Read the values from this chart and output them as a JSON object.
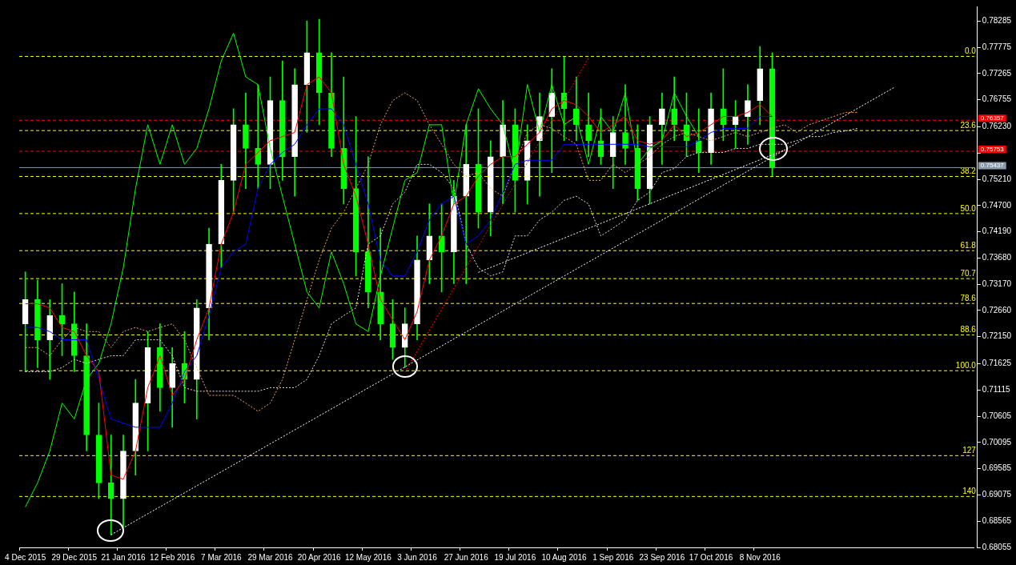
{
  "chart_data": {
    "type": "candlestick",
    "color": "#00ff00",
    "colors": [
      "#ffffff",
      "#00ff00",
      "#ffffff",
      "#00ff00",
      "#00ff00",
      "#00ff00",
      "#00ff00",
      "#00ff00",
      "#ffffff",
      "#ffffff",
      "#ffffff",
      "#00ff00",
      "#ffffff",
      "#00ff00",
      "#ffffff",
      "#ffffff",
      "#ffffff",
      "#ffffff",
      "#00ff00",
      "#00ff00",
      "#ffffff",
      "#00ff00",
      "#ffffff",
      "#ffffff",
      "#00ff00",
      "#00ff00",
      "#00ff00",
      "#00ff00",
      "#00ff00",
      "#00ff00",
      "#00ff00",
      "#ffffff",
      "#ffffff",
      "#ffffff",
      "#00ff00",
      "#ffffff",
      "#ffffff",
      "#00ff00",
      "#ffffff",
      "#ffffff",
      "#00ff00",
      "#ffffff",
      "#ffffff",
      "#ffffff",
      "#00ff00",
      "#00ff00",
      "#00ff00",
      "#00ff00",
      "#ffffff",
      "#00ff00",
      "#00ff00",
      "#ffffff",
      "#ffffff",
      "#00ff00",
      "#00ff00",
      "#00ff00",
      "#ffffff",
      "#00ff00",
      "#ffffff",
      "#ffffff",
      "#ffffff",
      "#00ff00",
      null,
      null,
      null,
      null,
      null,
      null,
      null,
      null,
      null,
      null,
      null,
      null,
      null,
      null,
      null,
      null
    ],
    "categories": [
      "4 Dec 2015",
      null,
      null,
      null,
      "29 Dec 2015",
      null,
      null,
      null,
      "21 Jan 2016",
      null,
      null,
      null,
      "12 Feb 2016",
      null,
      null,
      null,
      "7 Mar 2016",
      null,
      null,
      null,
      "29 Mar 2016",
      null,
      null,
      null,
      "20 Apr 2016",
      null,
      null,
      null,
      "12 May 2016",
      null,
      null,
      null,
      "3 Jun 2016",
      null,
      null,
      null,
      "27 Jun 2016",
      null,
      null,
      null,
      "19 Jul 2016",
      null,
      null,
      null,
      "10 Aug 2016",
      null,
      null,
      null,
      "1 Sep 2016",
      null,
      null,
      null,
      "23 Sep 2016",
      null,
      null,
      null,
      "17 Oct 2016",
      null,
      null,
      null,
      "8 Nov 2016",
      null,
      null,
      null,
      null,
      null,
      null,
      null,
      null,
      null,
      null,
      null,
      null,
      null,
      null,
      null,
      null,
      null
    ],
    "ohlc": [
      [
        0.724,
        0.7341,
        0.7147,
        0.7287
      ],
      [
        0.7287,
        0.7325,
        0.7155,
        0.7209
      ],
      [
        0.7209,
        0.7287,
        0.7132,
        0.7256
      ],
      [
        0.7256,
        0.7318,
        0.7178,
        0.724
      ],
      [
        0.724,
        0.7302,
        0.7147,
        0.7178
      ],
      [
        0.7178,
        0.724,
        0.6993,
        0.7024
      ],
      [
        0.7024,
        0.7086,
        0.69,
        0.6931
      ],
      [
        0.6931,
        0.7024,
        0.683,
        0.69
      ],
      [
        0.69,
        0.7024,
        0.6846,
        0.6993
      ],
      [
        0.6993,
        0.7132,
        0.6946,
        0.7086
      ],
      [
        0.7086,
        0.7225,
        0.6993,
        0.7194
      ],
      [
        0.7194,
        0.724,
        0.707,
        0.7116
      ],
      [
        0.7116,
        0.7194,
        0.7039,
        0.7163
      ],
      [
        0.7163,
        0.7225,
        0.7086,
        0.7132
      ],
      [
        0.7132,
        0.7287,
        0.7055,
        0.7271
      ],
      [
        0.7271,
        0.7426,
        0.7209,
        0.7395
      ],
      [
        0.7395,
        0.755,
        0.7349,
        0.7519
      ],
      [
        0.7519,
        0.7658,
        0.7457,
        0.7627
      ],
      [
        0.7627,
        0.7689,
        0.7503,
        0.7581
      ],
      [
        0.7581,
        0.7705,
        0.7503,
        0.755
      ],
      [
        0.755,
        0.772,
        0.7503,
        0.7674
      ],
      [
        0.7674,
        0.7751,
        0.7519,
        0.7565
      ],
      [
        0.7565,
        0.7736,
        0.7488,
        0.7705
      ],
      [
        0.7705,
        0.7829,
        0.7612,
        0.7767
      ],
      [
        0.7767,
        0.7832,
        0.7627,
        0.7689
      ],
      [
        0.7689,
        0.7767,
        0.7565,
        0.7581
      ],
      [
        0.7581,
        0.772,
        0.7473,
        0.7503
      ],
      [
        0.7503,
        0.7643,
        0.7333,
        0.738
      ],
      [
        0.738,
        0.7565,
        0.7271,
        0.7302
      ],
      [
        0.7302,
        0.7426,
        0.7209,
        0.724
      ],
      [
        0.724,
        0.7287,
        0.7171,
        0.7194
      ],
      [
        0.7194,
        0.7271,
        0.7155,
        0.724
      ],
      [
        0.724,
        0.7411,
        0.7209,
        0.7364
      ],
      [
        0.7364,
        0.7473,
        0.7318,
        0.7411
      ],
      [
        0.7411,
        0.7473,
        0.7302,
        0.738
      ],
      [
        0.738,
        0.7519,
        0.7318,
        0.7488
      ],
      [
        0.7488,
        0.7627,
        0.7318,
        0.755
      ],
      [
        0.755,
        0.7658,
        0.7426,
        0.7457
      ],
      [
        0.7457,
        0.7596,
        0.7411,
        0.7565
      ],
      [
        0.7565,
        0.7674,
        0.7473,
        0.7627
      ],
      [
        0.7627,
        0.7658,
        0.7457,
        0.7519
      ],
      [
        0.7519,
        0.7627,
        0.7473,
        0.7596
      ],
      [
        0.7596,
        0.7689,
        0.7488,
        0.7643
      ],
      [
        0.7643,
        0.7736,
        0.7534,
        0.7689
      ],
      [
        0.7689,
        0.7759,
        0.7596,
        0.7658
      ],
      [
        0.7658,
        0.772,
        0.7596,
        0.7627
      ],
      [
        0.7627,
        0.7689,
        0.7565,
        0.7596
      ],
      [
        0.7596,
        0.7658,
        0.755,
        0.7565
      ],
      [
        0.7565,
        0.7643,
        0.7503,
        0.7612
      ],
      [
        0.7612,
        0.7705,
        0.755,
        0.7581
      ],
      [
        0.7581,
        0.7627,
        0.748,
        0.7503
      ],
      [
        0.7503,
        0.7643,
        0.7473,
        0.7627
      ],
      [
        0.7627,
        0.7689,
        0.755,
        0.7658
      ],
      [
        0.7658,
        0.772,
        0.7596,
        0.7627
      ],
      [
        0.7627,
        0.7689,
        0.7565,
        0.7596
      ],
      [
        0.7596,
        0.7658,
        0.7534,
        0.7573
      ],
      [
        0.7573,
        0.7689,
        0.755,
        0.7658
      ],
      [
        0.7658,
        0.7736,
        0.7596,
        0.7627
      ],
      [
        0.7627,
        0.7674,
        0.7581,
        0.7643
      ],
      [
        0.7643,
        0.7705,
        0.7589,
        0.7674
      ],
      [
        0.7674,
        0.7779,
        0.7627,
        0.7736
      ],
      [
        0.7736,
        0.7767,
        0.7527,
        0.7544
      ],
      null,
      null,
      null,
      null,
      null,
      null,
      null,
      null,
      null,
      null,
      null,
      null,
      null,
      null,
      null,
      null
    ],
    "series": [
      {
        "type": "line",
        "color": "#ff0000",
        "values": [
          0.7279,
          0.7279,
          0.7271,
          0.7233,
          0.7225,
          0.7178,
          0.7147,
          0.6946,
          0.6938,
          0.6993,
          0.7116,
          0.7178,
          0.7101,
          0.7132,
          0.7209,
          0.7271,
          0.7395,
          0.7457,
          0.755,
          0.7573,
          0.7596,
          0.7604,
          0.7612,
          0.7705,
          0.772,
          0.7689,
          0.755,
          0.7488,
          0.7395,
          0.7287,
          0.7248,
          0.7209,
          0.7264,
          0.7364,
          0.7411,
          0.7473,
          0.7488,
          0.7527,
          0.755,
          0.7565,
          0.7565,
          0.7589,
          0.7612,
          0.7658,
          0.7674,
          0.7666,
          0.7643,
          0.7612,
          0.7627,
          0.7643,
          0.7596,
          0.7589,
          0.7596,
          0.7627,
          0.7604,
          0.7612,
          0.7627,
          0.7643,
          0.7643,
          0.7651,
          0.7666,
          0.7643,
          null,
          null,
          null,
          null,
          null,
          null,
          null,
          null,
          null,
          null,
          null,
          null,
          null,
          null,
          null,
          null
        ]
      },
      {
        "type": "line",
        "color": "#0000ff",
        "values": [
          0.7233,
          0.7233,
          0.7225,
          0.7209,
          0.7209,
          0.7209,
          0.7132,
          0.7055,
          0.7047,
          0.7039,
          0.7039,
          0.7039,
          0.7086,
          0.7147,
          0.7178,
          0.7256,
          0.7349,
          0.738,
          0.7395,
          0.7503,
          0.755,
          0.7573,
          0.7589,
          0.7627,
          0.7658,
          0.7658,
          0.7627,
          0.755,
          0.7473,
          0.7364,
          0.7333,
          0.7333,
          0.738,
          0.7442,
          0.7473,
          0.7488,
          0.7395,
          0.7411,
          0.7442,
          0.7496,
          0.755,
          0.7558,
          0.7558,
          0.7558,
          0.7589,
          0.7589,
          0.7589,
          0.7589,
          0.7589,
          0.7589,
          0.7589,
          0.7584,
          0.7584,
          0.7584,
          0.7584,
          0.7596,
          0.7612,
          0.762,
          0.762,
          0.762,
          0.7643,
          0.7643,
          null,
          null,
          null,
          null,
          null,
          null,
          null,
          null,
          null,
          null,
          null,
          null,
          null,
          null,
          null,
          null
        ]
      },
      {
        "type": "line",
        "color": "#00ff00",
        "values": [
          0.6884,
          0.6931,
          0.6993,
          0.7086,
          0.7055,
          0.7132,
          0.7163,
          0.724,
          0.7349,
          0.7503,
          0.7627,
          0.755,
          0.7627,
          0.755,
          0.7581,
          0.7658,
          0.7751,
          0.7805,
          0.772,
          0.7705,
          0.7581,
          0.7488,
          0.7395,
          0.7302,
          0.7271,
          0.738,
          0.7318,
          0.724,
          0.7225,
          0.7333,
          0.7426,
          0.7519,
          0.7534,
          0.7627,
          0.7627,
          0.7473,
          0.7627,
          0.7697,
          0.7658,
          0.7627,
          0.7534,
          0.7705,
          0.7612,
          0.7705,
          0.7627,
          0.7643,
          0.755,
          0.7643,
          0.7612,
          0.7689,
          0.755,
          0.7581,
          0.7596,
          0.7689,
          0.7643,
          0.7604,
          null,
          null,
          null,
          null,
          null,
          null,
          null,
          null,
          null,
          null,
          null,
          null,
          null,
          null,
          null,
          null,
          null,
          null,
          null,
          null,
          null,
          null
        ]
      },
      {
        "type": "line",
        "color": "#f4a460",
        "line_style": "dotted",
        "values": [
          0.7194,
          0.7194,
          0.7178,
          0.7209,
          0.7233,
          0.7225,
          0.7225,
          0.7194,
          0.7225,
          0.7233,
          0.7225,
          0.7233,
          0.724,
          0.7209,
          0.7155,
          0.7101,
          0.7101,
          0.7101,
          0.7086,
          0.707,
          0.7086,
          0.7132,
          0.7209,
          0.7287,
          0.7364,
          0.7426,
          0.7457,
          0.7503,
          0.755,
          0.7627,
          0.7674,
          0.7689,
          0.7674,
          0.7627,
          0.7589,
          0.755,
          0.7527,
          0.7534,
          0.7503,
          0.7488,
          0.755,
          0.7612,
          0.7627,
          0.762,
          0.7604,
          0.7589,
          0.7519,
          0.7519,
          0.755,
          0.7534,
          0.755,
          0.7565,
          0.7589,
          0.7604,
          0.7612,
          0.7604,
          0.7596,
          0.7604,
          0.7612,
          0.7604,
          0.7612,
          0.762,
          0.7627,
          0.7612,
          0.7627,
          0.7635,
          0.7643,
          0.7651,
          0.7651,
          null,
          null,
          null,
          null,
          null,
          null,
          null,
          null,
          null
        ]
      },
      {
        "type": "line",
        "color": "#f0e0e0",
        "line_style": "dotted",
        "values": [
          0.7147,
          0.7147,
          0.7147,
          0.7155,
          0.7171,
          0.7163,
          0.7171,
          0.7178,
          0.7178,
          0.7209,
          0.7209,
          0.7209,
          0.7178,
          0.7116,
          0.7109,
          0.7109,
          0.7109,
          0.7109,
          0.7109,
          0.7109,
          0.7116,
          0.7116,
          0.7116,
          0.7132,
          0.7178,
          0.724,
          0.7256,
          0.7271,
          0.7395,
          0.7411,
          0.7473,
          0.7496,
          0.755,
          0.755,
          0.7534,
          0.7503,
          0.7395,
          0.7349,
          0.7333,
          0.7341,
          0.7411,
          0.7411,
          0.7442,
          0.7457,
          0.748,
          0.7488,
          0.7473,
          0.7411,
          0.7426,
          0.7442,
          0.748,
          0.7496,
          0.7534,
          0.7542,
          0.7565,
          0.7573,
          0.7573,
          0.7573,
          0.7581,
          0.7581,
          0.7589,
          0.7589,
          0.7589,
          0.7596,
          0.7604,
          0.7604,
          0.7612,
          0.7615,
          0.762,
          null,
          null,
          null,
          null,
          null,
          null,
          null,
          null,
          null
        ]
      },
      {
        "type": "line",
        "color": "#ffffff",
        "line_style": "dotted",
        "values": [
          null,
          null,
          null,
          null,
          null,
          null,
          null,
          0.683,
          null,
          null,
          null,
          null,
          null,
          null,
          null,
          null,
          null,
          null,
          null,
          null,
          null,
          null,
          null,
          null,
          null,
          null,
          null,
          null,
          null,
          null,
          null,
          null,
          null,
          null,
          null,
          null,
          null,
          null,
          null,
          null,
          null,
          null,
          null,
          null,
          null,
          null,
          null,
          null,
          null,
          null,
          null,
          null,
          null,
          null,
          null,
          null,
          null,
          null,
          null,
          null,
          null,
          null,
          null,
          null,
          null,
          null,
          null,
          null,
          null,
          null,
          null,
          0.77,
          null,
          null,
          null,
          null,
          null,
          null
        ]
      },
      {
        "type": "line",
        "color": "#ffffff",
        "line_style": "dotted",
        "values": [
          null,
          null,
          null,
          null,
          null,
          null,
          null,
          null,
          null,
          null,
          null,
          null,
          null,
          null,
          null,
          null,
          null,
          null,
          null,
          null,
          null,
          null,
          null,
          null,
          null,
          null,
          null,
          null,
          null,
          null,
          null,
          null,
          null,
          null,
          null,
          null,
          null,
          0.734,
          null,
          null,
          null,
          null,
          null,
          null,
          null,
          null,
          null,
          null,
          null,
          null,
          null,
          null,
          null,
          null,
          null,
          null,
          null,
          null,
          null,
          null,
          null,
          null,
          0.7578,
          null,
          null,
          null,
          null,
          null,
          null,
          null,
          null,
          null,
          null,
          null,
          null,
          null,
          null,
          null
        ]
      },
      {
        "type": "line",
        "color": "#ff0000",
        "line_style": "dotted",
        "values": [
          null,
          null,
          null,
          null,
          null,
          null,
          null,
          null,
          null,
          null,
          null,
          null,
          null,
          null,
          null,
          null,
          null,
          null,
          null,
          null,
          null,
          null,
          null,
          null,
          null,
          null,
          null,
          null,
          null,
          null,
          null,
          0.7146,
          null,
          null,
          null,
          null,
          null,
          null,
          null,
          null,
          null,
          null,
          null,
          null,
          null,
          null,
          0.7757,
          null,
          null,
          null,
          null,
          null,
          null,
          null,
          null,
          null,
          null,
          null,
          null,
          null,
          null,
          null,
          null,
          null,
          null,
          null,
          null,
          null,
          null,
          null,
          null,
          null,
          null,
          null,
          null,
          null,
          null,
          null
        ]
      }
    ],
    "ylim": [
      0.68055,
      0.7857
    ],
    "yticks": [
      {
        "value": 0.68055,
        "label": "0.68055"
      },
      {
        "value": 0.68565,
        "label": "0.68565"
      },
      {
        "value": 0.69075,
        "label": "0.69075"
      },
      {
        "value": 0.69585,
        "label": "0.69585"
      },
      {
        "value": 0.70095,
        "label": "0.70095"
      },
      {
        "value": 0.70605,
        "label": "0.70605"
      },
      {
        "value": 0.71115,
        "label": "0.71115"
      },
      {
        "value": 0.71625,
        "label": "0.71625"
      },
      {
        "value": 0.7215,
        "label": "0.72150"
      },
      {
        "value": 0.7266,
        "label": "0.72660"
      },
      {
        "value": 0.7317,
        "label": "0.73170"
      },
      {
        "value": 0.7368,
        "label": "0.73680"
      },
      {
        "value": 0.7419,
        "label": "0.74190"
      },
      {
        "value": 0.747,
        "label": "0.74700"
      },
      {
        "value": 0.7521,
        "label": "0.75210"
      },
      {
        "value": 0.7572,
        "label": null
      },
      {
        "value": 0.7623,
        "label": "0.76230"
      },
      {
        "value": 0.76755,
        "label": "0.76755"
      },
      {
        "value": 0.77265,
        "label": "0.77265"
      },
      {
        "value": 0.77775,
        "label": "0.77775"
      },
      {
        "value": 0.78285,
        "label": "0.78285"
      }
    ],
    "y2lim": [
      156.2,
      -15.9
    ],
    "y2ticks": [
      {
        "value": 0,
        "label": "0.0"
      },
      23.6,
      38.2,
      {
        "value": 50,
        "label": "50.0"
      },
      61.8,
      70.7,
      78.6,
      88.6,
      {
        "value": 100,
        "label": "100.0"
      },
      127,
      140
    ],
    "ref_lines": [
      {
        "axis": "y2",
        "value": 0,
        "color": "#ffff00",
        "line_style": "dashed"
      },
      {
        "axis": "y2",
        "value": 23.6,
        "color": "#ffff00",
        "line_style": "dashed"
      },
      {
        "axis": "y2",
        "value": 38.2,
        "color": "#ffff00",
        "line_style": "dashed"
      },
      {
        "axis": "y2",
        "value": 50,
        "color": "#ffff00",
        "line_style": "dashed"
      },
      {
        "axis": "y2",
        "value": 61.8,
        "color": "#ffff00",
        "line_style": "dashed"
      },
      {
        "axis": "y2",
        "value": 70.7,
        "color": "#ffff00",
        "line_style": "dashed"
      },
      {
        "axis": "y2",
        "value": 78.6,
        "color": "#ffff00",
        "line_style": "dashed"
      },
      {
        "axis": "y2",
        "value": 88.6,
        "color": "#ffff00",
        "line_style": "dashed"
      },
      {
        "axis": "y2",
        "value": 100,
        "color": "#ffff00",
        "line_style": "dashed"
      },
      {
        "axis": "y2",
        "value": 127,
        "color": "#ffff00",
        "line_style": "dashed"
      },
      {
        "axis": "y2",
        "value": 140,
        "color": "#ffff00",
        "line_style": "dashed"
      },
      {
        "axis": "y",
        "value": 0.76357,
        "label": "0.76357",
        "color": "#ff0000",
        "line_style": "dashed"
      },
      {
        "axis": "y",
        "value": 0.75753,
        "label": "0.75753",
        "color": "#ff0000",
        "line_style": "dashed"
      },
      {
        "axis": "y",
        "value": 0.75437,
        "label": "0.75437",
        "color": "#8a9aaa",
        "line_style": "solid"
      }
    ],
    "legend": false,
    "grid": false
  }
}
